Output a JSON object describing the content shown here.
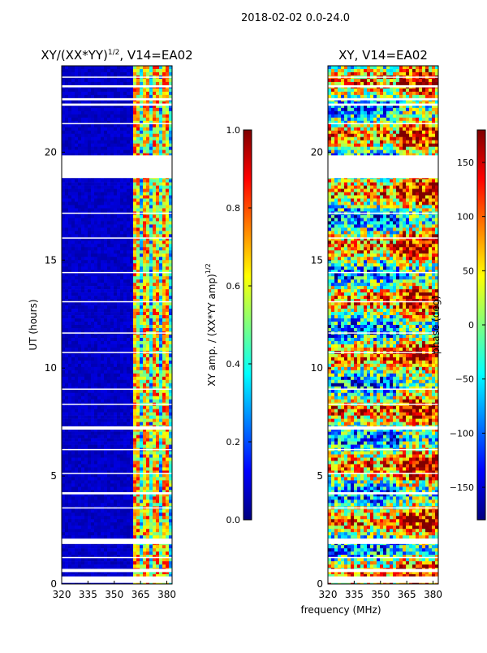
{
  "figure": {
    "suptitle": "2018-02-02 0.0-24.0",
    "shared_xlabel": "frequency (MHz)"
  },
  "chart_data": [
    {
      "type": "heatmap",
      "title_main": "XY/(XX*YY)",
      "title_sup": "1/2",
      "title_rest": ", V14=EA02",
      "xlabel": "frequency (MHz)",
      "ylabel": "UT (hours)",
      "xlim": [
        320,
        383
      ],
      "ylim": [
        0,
        24
      ],
      "xticks": [
        "320",
        "335",
        "350",
        "365",
        "380"
      ],
      "yticks": [
        "0",
        "5",
        "10",
        "15",
        "20"
      ],
      "colorbar": {
        "label_main": "XY amp. / (XX*YY amp)",
        "label_sup": "1/2",
        "range": [
          0.0,
          1.0
        ],
        "ticks": [
          "0.0",
          "0.2",
          "0.4",
          "0.6",
          "0.8",
          "1.0"
        ],
        "colormap": "jet"
      },
      "summary": "Values near 0 for 320-360 MHz; elevated 0.2-0.9 in channels 360-383 MHz; blank rows mark flagged times"
    },
    {
      "type": "heatmap",
      "title": "XY, V14=EA02",
      "xlabel": "frequency (MHz)",
      "ylabel": "",
      "xlim": [
        320,
        383
      ],
      "ylim": [
        0,
        24
      ],
      "xticks": [
        "320",
        "335",
        "350",
        "365",
        "380"
      ],
      "yticks": [
        "0",
        "5",
        "10",
        "15",
        "20"
      ],
      "colorbar": {
        "label": "phase (deg)",
        "range": [
          -180,
          180
        ],
        "ticks": [
          "150",
          "100",
          "50",
          "0",
          "−50",
          "−100",
          "−150"
        ],
        "colormap": "jet"
      },
      "summary": "Noisy XY phase across -180 to 180 deg; warm band 360-383 MHz; blank rows mark flagged times"
    }
  ],
  "colors": {
    "jet": [
      "#00007f",
      "#0000ff",
      "#007fff",
      "#00ffff",
      "#7fff7f",
      "#ffff00",
      "#ff7f00",
      "#ff0000",
      "#7f0000"
    ],
    "flag": "#ffffff"
  }
}
